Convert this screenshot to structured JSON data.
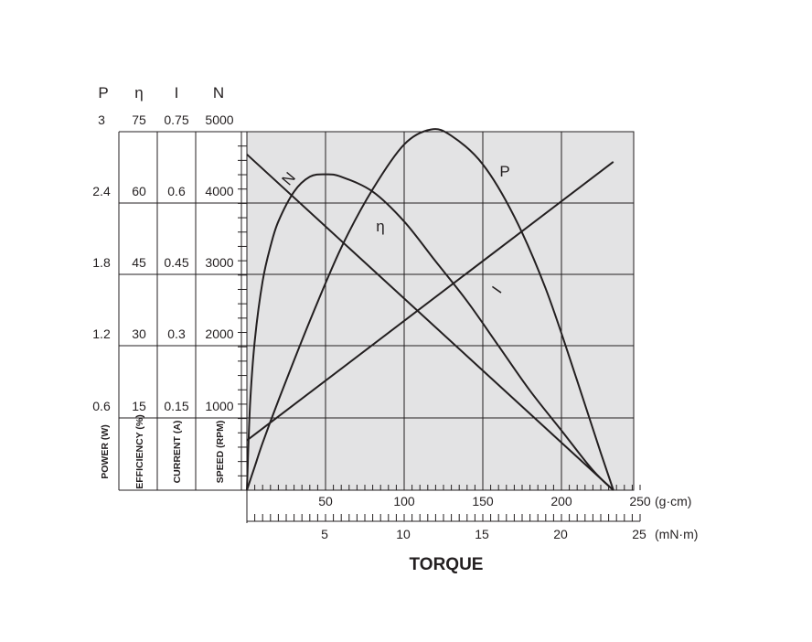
{
  "chart_data": {
    "type": "line",
    "title": "",
    "xlabel": "TORQUE",
    "x_units": [
      "(g·cm)",
      "(mN·m)"
    ],
    "x_ticks_gcm": [
      "50",
      "100",
      "150",
      "200",
      "250"
    ],
    "x_ticks_mNm": [
      "5",
      "10",
      "15",
      "20",
      "25"
    ],
    "xlim_gcm": [
      0,
      250
    ],
    "grid": true,
    "left_axes": [
      {
        "symbol": "P",
        "label": "POWER (W)",
        "ticks": [
          "3",
          "2.4",
          "1.8",
          "1.2",
          "0.6"
        ],
        "range": [
          0,
          3
        ]
      },
      {
        "symbol": "η",
        "label": "EFFICIENCY (%)",
        "ticks": [
          "75",
          "60",
          "45",
          "30",
          "15"
        ],
        "range": [
          0,
          75
        ]
      },
      {
        "symbol": "I",
        "label": "CURRENT (A)",
        "ticks": [
          "0.75",
          "0.6",
          "0.45",
          "0.3",
          "0.15"
        ],
        "range": [
          0,
          0.75
        ]
      },
      {
        "symbol": "N",
        "label": "SPEED (RPM)",
        "ticks": [
          "5000",
          "4000",
          "3000",
          "2000",
          "1000"
        ],
        "range": [
          0,
          5000
        ]
      }
    ],
    "series": [
      {
        "name": "N",
        "axis": "N",
        "x": [
          0,
          233
        ],
        "y": [
          4500,
          0
        ]
      },
      {
        "name": "I",
        "axis": "I",
        "x": [
          0,
          233
        ],
        "y": [
          0.1,
          0.66
        ]
      },
      {
        "name": "η",
        "axis": "η",
        "x": [
          0,
          2,
          5,
          10,
          15,
          20,
          30,
          40,
          50,
          60,
          80,
          100,
          120,
          140,
          160,
          180,
          200,
          220,
          233
        ],
        "y": [
          0,
          17,
          30,
          42,
          49,
          54,
          60,
          63,
          63.5,
          63,
          60,
          54,
          46,
          38,
          29,
          20,
          12,
          4,
          0
        ]
      },
      {
        "name": "P",
        "axis": "P",
        "x": [
          0,
          5,
          10,
          20,
          40,
          60,
          80,
          100,
          117,
          130,
          150,
          170,
          190,
          210,
          225,
          233
        ],
        "y": [
          0,
          0.19,
          0.38,
          0.72,
          1.36,
          1.95,
          2.42,
          2.78,
          2.9,
          2.85,
          2.62,
          2.2,
          1.62,
          0.88,
          0.3,
          0
        ]
      }
    ]
  }
}
